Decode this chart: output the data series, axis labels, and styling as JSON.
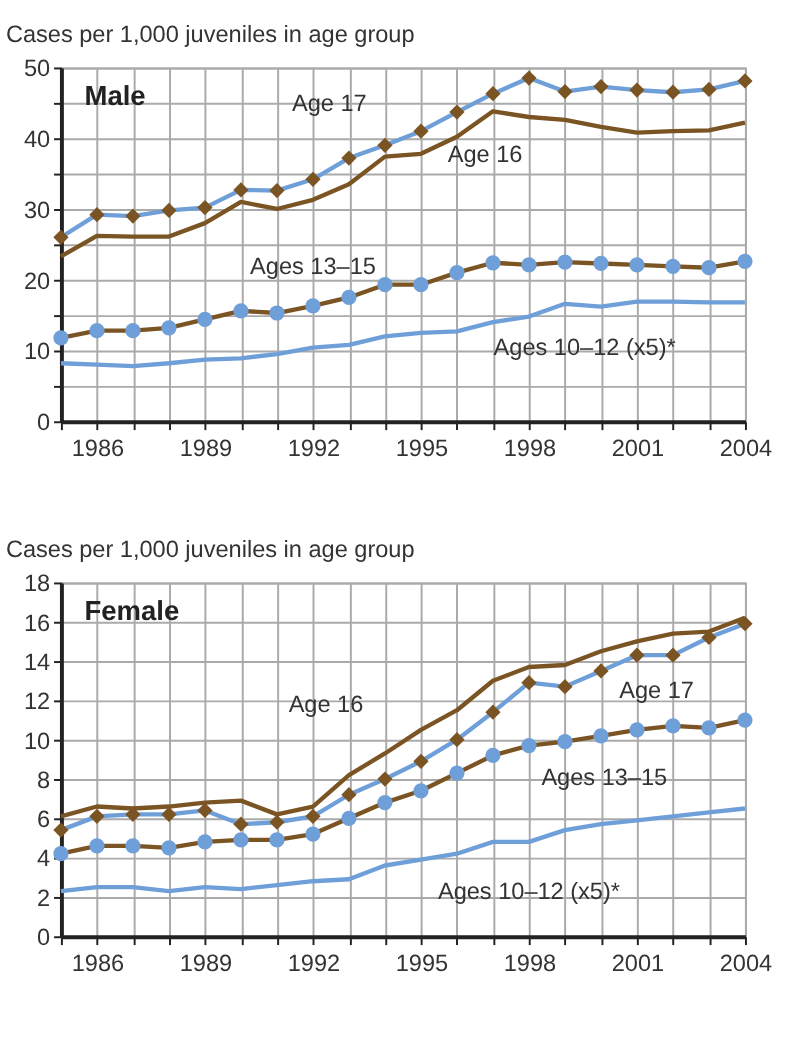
{
  "chart_data": [
    {
      "type": "line",
      "title": "Male",
      "ylabel": "Cases per 1,000 juveniles in age group",
      "x": [
        1985,
        1986,
        1987,
        1988,
        1989,
        1990,
        1991,
        1992,
        1993,
        1994,
        1995,
        1996,
        1997,
        1998,
        1999,
        2000,
        2001,
        2002,
        2003,
        2004
      ],
      "xlim": [
        1985,
        2004
      ],
      "xticks": [
        {
          "value": 1985,
          "label": null
        },
        1986,
        {
          "value": 1987,
          "label": null
        },
        {
          "value": 1988,
          "label": null
        },
        1989,
        {
          "value": 1990,
          "label": null
        },
        {
          "value": 1991,
          "label": null
        },
        1992,
        {
          "value": 1993,
          "label": null
        },
        {
          "value": 1994,
          "label": null
        },
        1995,
        {
          "value": 1996,
          "label": null
        },
        {
          "value": 1997,
          "label": null
        },
        1998,
        {
          "value": 1999,
          "label": null
        },
        {
          "value": 2000,
          "label": null
        },
        2001,
        {
          "value": 2002,
          "label": null
        },
        {
          "value": 2003,
          "label": null
        },
        2004
      ],
      "ylim": [
        0,
        50
      ],
      "yticks": [
        0,
        {
          "value": 5,
          "label": null
        },
        10,
        {
          "value": 15,
          "label": null
        },
        20,
        {
          "value": 25,
          "label": null
        },
        30,
        {
          "value": 35,
          "label": null
        },
        40,
        {
          "value": 45,
          "label": null
        },
        50
      ],
      "grid": true,
      "series": [
        {
          "name": "Age 17",
          "color": "#6f9fd8",
          "marker": "diamond",
          "values": [
            26,
            29.2,
            29,
            29.8,
            30.2,
            32.7,
            32.6,
            34.2,
            37.2,
            39,
            41,
            43.7,
            46.3,
            48.5,
            46.6,
            47.3,
            46.8,
            46.5,
            46.9,
            48.1
          ]
        },
        {
          "name": "Age 16",
          "color": "#7b5424",
          "values": [
            23.3,
            26.2,
            26.1,
            26.1,
            28,
            31,
            30,
            31.3,
            33.5,
            37.4,
            37.8,
            40.2,
            43.8,
            43,
            42.6,
            41.6,
            40.8,
            41,
            41.1,
            42.2
          ]
        },
        {
          "name": "Ages 13–15",
          "color": "#7b5424",
          "marker": "circle",
          "values": [
            11.8,
            12.8,
            12.8,
            13.2,
            14.4,
            15.6,
            15.3,
            16.3,
            17.5,
            19.3,
            19.3,
            21,
            22.4,
            22.1,
            22.5,
            22.3,
            22.1,
            21.9,
            21.7,
            22.6
          ]
        },
        {
          "name": "Ages 10–12 (x5)*",
          "color": "#6f9fd8",
          "values": [
            8.2,
            8,
            7.8,
            8.2,
            8.7,
            8.9,
            9.5,
            10.4,
            10.8,
            12,
            12.5,
            12.7,
            14,
            14.8,
            16.6,
            16.2,
            16.9,
            16.9,
            16.8,
            16.8
          ]
        }
      ]
    },
    {
      "type": "line",
      "title": "Female",
      "ylabel": "Cases per 1,000 juveniles in age group",
      "x": [
        1985,
        1986,
        1987,
        1988,
        1989,
        1990,
        1991,
        1992,
        1993,
        1994,
        1995,
        1996,
        1997,
        1998,
        1999,
        2000,
        2001,
        2002,
        2003,
        2004
      ],
      "xlim": [
        1985,
        2004
      ],
      "xticks": [
        {
          "value": 1985,
          "label": null
        },
        1986,
        {
          "value": 1987,
          "label": null
        },
        {
          "value": 1988,
          "label": null
        },
        1989,
        {
          "value": 1990,
          "label": null
        },
        {
          "value": 1991,
          "label": null
        },
        1992,
        {
          "value": 1993,
          "label": null
        },
        {
          "value": 1994,
          "label": null
        },
        1995,
        {
          "value": 1996,
          "label": null
        },
        {
          "value": 1997,
          "label": null
        },
        1998,
        {
          "value": 1999,
          "label": null
        },
        {
          "value": 2000,
          "label": null
        },
        2001,
        {
          "value": 2002,
          "label": null
        },
        {
          "value": 2003,
          "label": null
        },
        2004
      ],
      "ylim": [
        0,
        18
      ],
      "yticks": [
        0,
        2,
        4,
        6,
        8,
        10,
        12,
        14,
        16,
        18
      ],
      "grid": true,
      "series": [
        {
          "name": "Age 16",
          "color": "#7b5424",
          "values": [
            6.1,
            6.6,
            6.5,
            6.6,
            6.8,
            6.9,
            6.2,
            6.6,
            8.2,
            9.3,
            10.5,
            11.5,
            13,
            13.7,
            13.8,
            14.5,
            15,
            15.4,
            15.5,
            16.2
          ]
        },
        {
          "name": "Age 17",
          "color": "#6f9fd8",
          "marker": "diamond",
          "values": [
            5.4,
            6.1,
            6.2,
            6.2,
            6.4,
            5.7,
            5.8,
            6.1,
            7.2,
            8.0,
            8.9,
            10.0,
            11.4,
            12.9,
            12.7,
            13.5,
            14.3,
            14.3,
            15.2,
            15.9
          ]
        },
        {
          "name": "Ages 13–15",
          "color": "#7b5424",
          "marker": "circle",
          "values": [
            4.2,
            4.6,
            4.6,
            4.5,
            4.8,
            4.9,
            4.9,
            5.2,
            6.0,
            6.8,
            7.4,
            8.3,
            9.2,
            9.7,
            9.9,
            10.2,
            10.5,
            10.7,
            10.6,
            11.0
          ]
        },
        {
          "name": "Ages 10–12 (x5)*",
          "color": "#6f9fd8",
          "values": [
            2.3,
            2.5,
            2.5,
            2.3,
            2.5,
            2.4,
            2.6,
            2.8,
            2.9,
            3.6,
            3.9,
            4.2,
            4.8,
            4.8,
            5.4,
            5.7,
            5.9,
            6.1,
            6.3,
            6.5
          ]
        }
      ]
    }
  ]
}
